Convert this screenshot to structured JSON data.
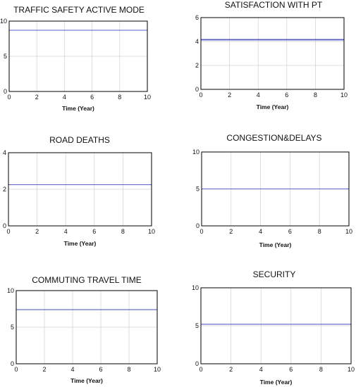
{
  "style": {
    "line_color": "#5a5fc8",
    "grid_color": "#d0d0d0",
    "frame_color": "#000000"
  },
  "chart_data": [
    {
      "type": "line",
      "title": "TRAFFIC SAFETY ACTIVE MODE",
      "xlabel": "Time (Year)",
      "xlim": [
        0,
        10
      ],
      "ylim": [
        0,
        10
      ],
      "xticks": [
        "0",
        "2",
        "4",
        "6",
        "8",
        "10"
      ],
      "yticks": [
        "0",
        "5",
        "10"
      ],
      "grid": true,
      "x": [
        0,
        10
      ],
      "series": [
        {
          "values": [
            8.7,
            8.7
          ]
        }
      ]
    },
    {
      "type": "line",
      "title": "SATISFACTION WITH PT",
      "xlabel": "Time (Year)",
      "xlim": [
        0,
        10
      ],
      "ylim": [
        0,
        6
      ],
      "xticks": [
        "0",
        "2",
        "4",
        "6",
        "8",
        "10"
      ],
      "yticks": [
        "0",
        "2",
        "4",
        "6"
      ],
      "grid": true,
      "x": [
        0,
        10
      ],
      "series": [
        {
          "values": [
            4.15,
            4.15
          ]
        }
      ]
    },
    {
      "type": "line",
      "title": "ROAD DEATHS",
      "xlabel": "Time (Year)",
      "xlim": [
        0,
        10
      ],
      "ylim": [
        0,
        4
      ],
      "xticks": [
        "0",
        "2",
        "4",
        "6",
        "8",
        "10"
      ],
      "yticks": [
        "0",
        "2",
        "4"
      ],
      "grid": true,
      "x": [
        0,
        10
      ],
      "series": [
        {
          "values": [
            2.25,
            2.25
          ]
        }
      ]
    },
    {
      "type": "line",
      "title": "CONGESTION&DELAYS",
      "xlabel": "Time (Year)",
      "xlim": [
        0,
        10
      ],
      "ylim": [
        0,
        10
      ],
      "xticks": [
        "0",
        "2",
        "4",
        "6",
        "8",
        "10"
      ],
      "yticks": [
        "0",
        "5",
        "10"
      ],
      "grid": true,
      "x": [
        0,
        10
      ],
      "series": [
        {
          "values": [
            5.0,
            5.0
          ]
        }
      ]
    },
    {
      "type": "line",
      "title": "COMMUTING TRAVEL TIME",
      "xlabel": "Time (Year)",
      "xlim": [
        0,
        10
      ],
      "ylim": [
        0,
        10
      ],
      "xticks": [
        "0",
        "2",
        "4",
        "6",
        "8",
        "10"
      ],
      "yticks": [
        "0",
        "5",
        "10"
      ],
      "grid": true,
      "x": [
        0,
        10
      ],
      "series": [
        {
          "values": [
            7.4,
            7.4
          ]
        }
      ]
    },
    {
      "type": "line",
      "title": "SECURITY",
      "xlabel": "Time (Year)",
      "xlim": [
        0,
        10
      ],
      "ylim": [
        0,
        10
      ],
      "xticks": [
        "0",
        "2",
        "4",
        "6",
        "8",
        "10"
      ],
      "yticks": [
        "0",
        "5",
        "10"
      ],
      "grid": true,
      "x": [
        0,
        10
      ],
      "series": [
        {
          "values": [
            5.2,
            5.2
          ]
        }
      ]
    }
  ]
}
